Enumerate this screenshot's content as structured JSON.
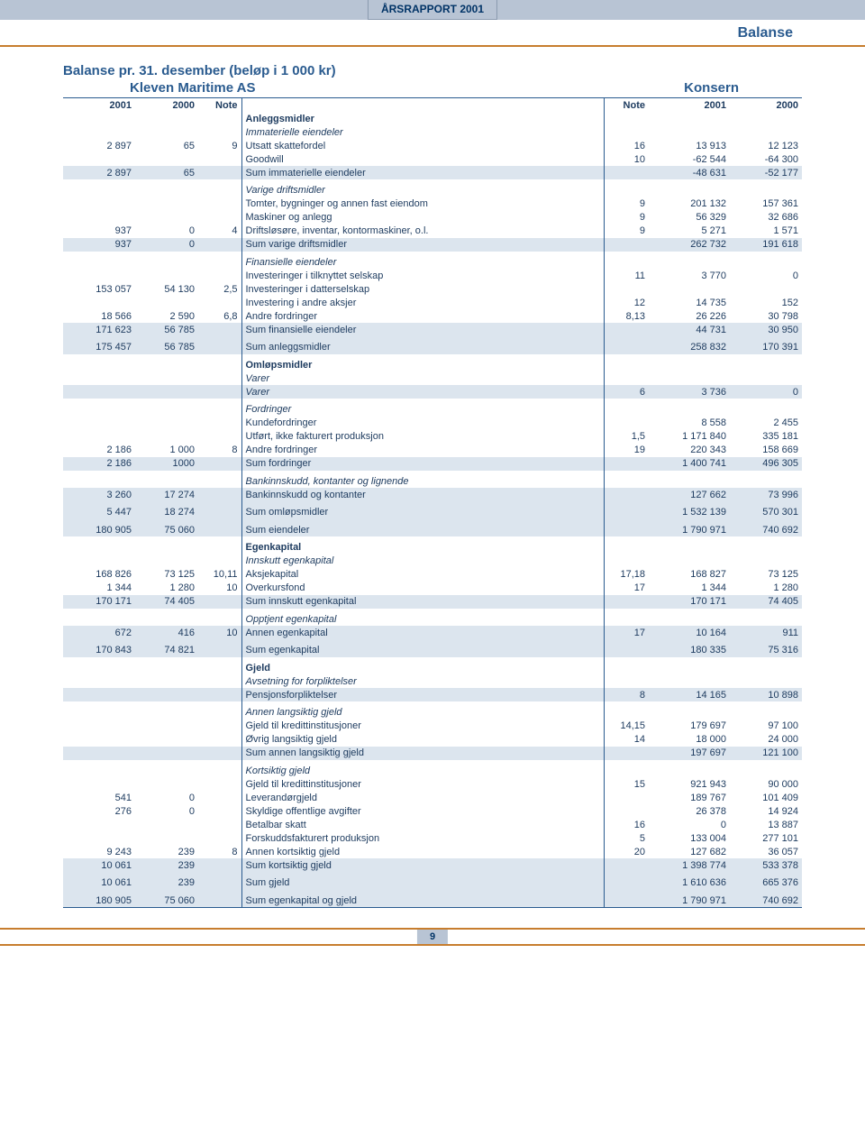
{
  "topLabel": "ÅRSRAPPORT 2001",
  "pageTitle": "Balanse",
  "sheetTitle": "Balanse pr. 31. desember (beløp i 1 000 kr)",
  "groupLeft": "Kleven Maritime AS",
  "groupRight": "Konsern",
  "headers": {
    "c1": "2001",
    "c2": "2000",
    "c3": "Note",
    "c5": "Note",
    "c6": "2001",
    "c7": "2000"
  },
  "rows": [
    {
      "cls": "sect",
      "label": "Anleggsmidler"
    },
    {
      "cls": "ital",
      "label": "Immaterielle eiendeler"
    },
    {
      "c1": "2 897",
      "c2": "65",
      "c3": "9",
      "label": "Utsatt skattefordel",
      "c5": "16",
      "c6": "13 913",
      "c7": "12 123"
    },
    {
      "label": "Goodwill",
      "c5": "10",
      "c6": "-62 544",
      "c7": "-64 300"
    },
    {
      "cls": "shade",
      "c1": "2 897",
      "c2": "65",
      "label": "Sum immaterielle eiendeler",
      "c6": "-48 631",
      "c7": "-52 177"
    },
    {
      "cls": "ital space",
      "label": "Varige driftsmidler"
    },
    {
      "label": "Tomter, bygninger og annen fast eiendom",
      "c5": "9",
      "c6": "201 132",
      "c7": "157 361"
    },
    {
      "label": "Maskiner og anlegg",
      "c5": "9",
      "c6": "56 329",
      "c7": "32 686"
    },
    {
      "c1": "937",
      "c2": "0",
      "c3": "4",
      "label": "Driftsløsøre, inventar, kontormaskiner, o.l.",
      "c5": "9",
      "c6": "5 271",
      "c7": "1 571"
    },
    {
      "cls": "shade",
      "c1": "937",
      "c2": "0",
      "label": "Sum varige driftsmidler",
      "c6": "262 732",
      "c7": "191 618"
    },
    {
      "cls": "ital space",
      "label": "Finansielle eiendeler"
    },
    {
      "label": "Investeringer i tilknyttet selskap",
      "c5": "11",
      "c6": "3 770",
      "c7": "0"
    },
    {
      "c1": "153 057",
      "c2": "54 130",
      "c3": "2,5",
      "label": "Investeringer i datterselskap"
    },
    {
      "label": "Investering i andre aksjer",
      "c5": "12",
      "c6": "14 735",
      "c7": "152"
    },
    {
      "c1": "18 566",
      "c2": "2 590",
      "c3": "6,8",
      "label": "Andre fordringer",
      "c5": "8,13",
      "c6": "26 226",
      "c7": "30 798"
    },
    {
      "cls": "shade",
      "c1": "171 623",
      "c2": "56 785",
      "label": "Sum finansielle eiendeler",
      "c6": "44 731",
      "c7": "30 950"
    },
    {
      "cls": "shade space",
      "c1": "175 457",
      "c2": "56 785",
      "label": "Sum anleggsmidler",
      "c6": "258 832",
      "c7": "170 391"
    },
    {
      "cls": "sect space",
      "label": "Omløpsmidler"
    },
    {
      "cls": "ital",
      "label": "Varer"
    },
    {
      "cls": "ital shade",
      "label": "Varer",
      "c5": "6",
      "c6": "3 736",
      "c7": "0"
    },
    {
      "cls": "ital space",
      "label": "Fordringer"
    },
    {
      "label": "Kundefordringer",
      "c6": "8 558",
      "c7": "2 455"
    },
    {
      "label": "Utført, ikke fakturert produksjon",
      "c5": "1,5",
      "c6": "1 171 840",
      "c7": "335 181"
    },
    {
      "c1": "2 186",
      "c2": "1 000",
      "c3": "8",
      "label": "Andre fordringer",
      "c5": "19",
      "c6": "220 343",
      "c7": "158 669"
    },
    {
      "cls": "shade",
      "c1": "2 186",
      "c2": "1000",
      "label": "Sum fordringer",
      "c6": "1 400 741",
      "c7": "496 305"
    },
    {
      "cls": "ital space",
      "label": "Bankinnskudd, kontanter og lignende"
    },
    {
      "cls": "shade",
      "c1": "3 260",
      "c2": "17 274",
      "label": "Bankinnskudd og kontanter",
      "c6": "127 662",
      "c7": "73 996"
    },
    {
      "cls": "shade space",
      "c1": "5 447",
      "c2": "18 274",
      "label": "Sum omløpsmidler",
      "c6": "1 532 139",
      "c7": "570 301"
    },
    {
      "cls": "shade space",
      "c1": "180 905",
      "c2": "75 060",
      "label": "Sum eiendeler",
      "c6": "1 790 971",
      "c7": "740 692"
    },
    {
      "cls": "sect space",
      "label": "Egenkapital"
    },
    {
      "cls": "ital",
      "label": "Innskutt egenkapital"
    },
    {
      "c1": "168 826",
      "c2": "73 125",
      "c3": "10,11",
      "label": "Aksjekapital",
      "c5": "17,18",
      "c6": "168 827",
      "c7": "73 125"
    },
    {
      "c1": "1 344",
      "c2": "1 280",
      "c3": "10",
      "label": "Overkursfond",
      "c5": "17",
      "c6": "1 344",
      "c7": "1 280"
    },
    {
      "cls": "shade",
      "c1": "170 171",
      "c2": "74 405",
      "label": "Sum innskutt egenkapital",
      "c6": "170 171",
      "c7": "74 405"
    },
    {
      "cls": "ital space",
      "label": "Opptjent egenkapital"
    },
    {
      "cls": "shade",
      "c1": "672",
      "c2": "416",
      "c3": "10",
      "label": "Annen egenkapital",
      "c5": "17",
      "c6": "10 164",
      "c7": "911"
    },
    {
      "cls": "shade space",
      "c1": "170 843",
      "c2": "74 821",
      "label": "Sum egenkapital",
      "c6": "180 335",
      "c7": "75 316"
    },
    {
      "cls": "sect space",
      "label": "Gjeld"
    },
    {
      "cls": "ital",
      "label": "Avsetning for forpliktelser"
    },
    {
      "cls": "shade",
      "label": "Pensjonsforpliktelser",
      "c5": "8",
      "c6": "14 165",
      "c7": "10 898"
    },
    {
      "cls": "ital space",
      "label": "Annen langsiktig gjeld"
    },
    {
      "label": "Gjeld til kredittinstitusjoner",
      "c5": "14,15",
      "c6": "179 697",
      "c7": "97 100"
    },
    {
      "label": "Øvrig langsiktig gjeld",
      "c5": "14",
      "c6": "18 000",
      "c7": "24 000"
    },
    {
      "cls": "shade",
      "label": "Sum annen langsiktig gjeld",
      "c6": "197 697",
      "c7": "121 100"
    },
    {
      "cls": "ital space",
      "label": "Kortsiktig gjeld"
    },
    {
      "label": "Gjeld til kredittinstitusjoner",
      "c5": "15",
      "c6": "921 943",
      "c7": "90 000"
    },
    {
      "c1": "541",
      "c2": "0",
      "label": "Leverandørgjeld",
      "c6": "189 767",
      "c7": "101 409"
    },
    {
      "c1": "276",
      "c2": "0",
      "label": "Skyldige offentlige avgifter",
      "c6": "26 378",
      "c7": "14 924"
    },
    {
      "label": "Betalbar skatt",
      "c5": "16",
      "c6": "0",
      "c7": "13 887"
    },
    {
      "label": "Forskuddsfakturert produksjon",
      "c5": "5",
      "c6": "133 004",
      "c7": "277 101"
    },
    {
      "c1": "9 243",
      "c2": "239",
      "c3": "8",
      "label": "Annen kortsiktig gjeld",
      "c5": "20",
      "c6": "127 682",
      "c7": "36 057"
    },
    {
      "cls": "shade",
      "c1": "10 061",
      "c2": "239",
      "label": "Sum kortsiktig gjeld",
      "c6": "1 398 774",
      "c7": "533 378"
    },
    {
      "cls": "shade space",
      "c1": "10 061",
      "c2": "239",
      "label": "Sum gjeld",
      "c6": "1 610 636",
      "c7": "665 376"
    },
    {
      "cls": "shade space",
      "c1": "180 905",
      "c2": "75 060",
      "label": "Sum egenkapital og gjeld",
      "c6": "1 790 971",
      "c7": "740 692"
    }
  ],
  "pageNumber": "9"
}
